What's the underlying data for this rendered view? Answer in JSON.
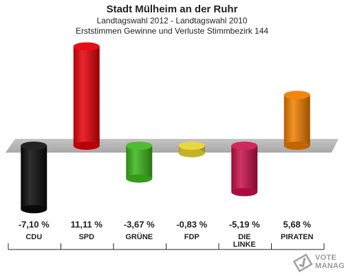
{
  "header": {
    "title": "Stadt Mülheim an der Ruhr",
    "subtitle1": "Landtagswahl 2012 - Landtagswahl 2010",
    "subtitle2": "Erststimmen Gewinne und Verluste Stimmbezirk 144"
  },
  "chart_data": {
    "type": "bar",
    "title": "Stadt Mülheim an der Ruhr",
    "categories": [
      "CDU",
      "SPD",
      "GRÜNE",
      "FDP",
      "DIE LINKE",
      "PIRATEN"
    ],
    "values": [
      -7.1,
      11.11,
      -3.67,
      -0.83,
      -5.19,
      5.68
    ],
    "value_labels": [
      "-7,10 %",
      "11,11 %",
      "-3,67 %",
      "-0,83 %",
      "-5,19 %",
      "5,68 %"
    ],
    "colors": [
      "#0a0a0a",
      "#e8000a",
      "#3db51b",
      "#e6d22a",
      "#c8114a",
      "#f07f00"
    ],
    "ylim": [
      -7.5,
      12
    ],
    "grid": false,
    "legend": "none"
  },
  "watermark": {
    "line1": "VOTE",
    "line2": "MANAGER"
  }
}
